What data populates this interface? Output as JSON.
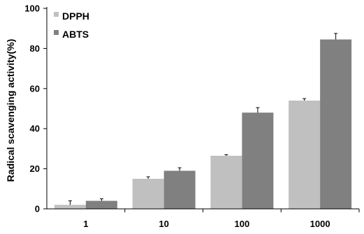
{
  "chart_data": {
    "type": "bar",
    "title": "",
    "xlabel": "",
    "ylabel": "Radical scavenging activity(%)",
    "categories": [
      "1",
      "10",
      "100",
      "1000"
    ],
    "series": [
      {
        "name": "DPPH",
        "color": "#c0c0c0",
        "values": [
          2,
          15,
          26.5,
          54
        ],
        "errors": [
          2,
          1,
          0.5,
          1
        ]
      },
      {
        "name": "ABTS",
        "color": "#808080",
        "values": [
          4,
          19,
          48,
          84.5
        ],
        "errors": [
          1,
          1.5,
          2.5,
          3
        ]
      }
    ],
    "ylim": [
      0,
      100
    ],
    "yticks": [
      0,
      20,
      40,
      60,
      80,
      100
    ],
    "grid": false,
    "legend_position": "top-left"
  }
}
